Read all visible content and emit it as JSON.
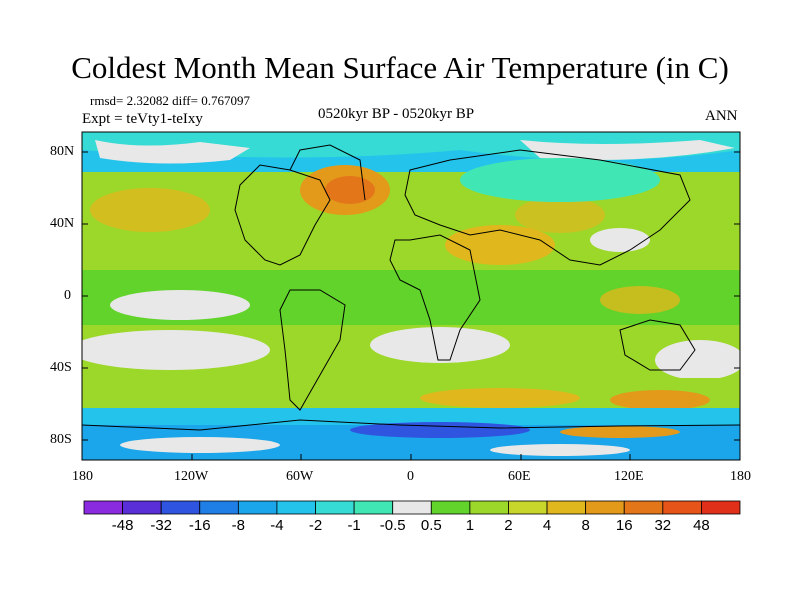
{
  "title": "Coldest Month Mean Surface Air Temperature (in C)",
  "stats_line": "rmsd= 2.32082 diff= 0.767097",
  "experiment": "Expt = teVty1-teIxy",
  "period": "0520kyr BP - 0520kyr BP",
  "season": "ANN",
  "lat_ticks": [
    "80N",
    "40N",
    "0",
    "40S",
    "80S"
  ],
  "lon_ticks": [
    "180",
    "120W",
    "60W",
    "0",
    "60E",
    "120E",
    "180"
  ],
  "colorbar": {
    "labels": [
      "-48",
      "-32",
      "-16",
      "-8",
      "-4",
      "-2",
      "-1",
      "-0.5",
      "0.5",
      "1",
      "2",
      "4",
      "8",
      "16",
      "32",
      "48"
    ],
    "colors": [
      "#8b2be0",
      "#5a2fd8",
      "#2f55e0",
      "#1f7fe6",
      "#1ba5ea",
      "#24c3ec",
      "#35dbd4",
      "#40e6b4",
      "#e8e8e8",
      "#61d32a",
      "#9bd82a",
      "#c8d52a",
      "#e0b81d",
      "#e39a1a",
      "#e4761a",
      "#e6541a",
      "#e0301a"
    ]
  }
}
